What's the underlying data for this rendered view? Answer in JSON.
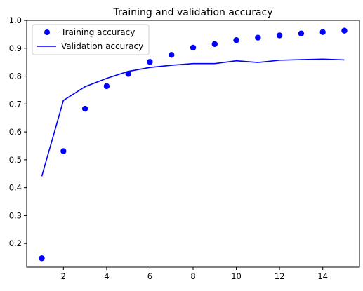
{
  "chart_data": {
    "type": "line",
    "title": "Training and validation accuracy",
    "xlabel": "",
    "ylabel": "",
    "xlim": [
      0.3,
      15.7
    ],
    "ylim": [
      0.115,
      1.0
    ],
    "grid": false,
    "legend_position": "top-left",
    "x_ticks": [
      2,
      4,
      6,
      8,
      10,
      12,
      14
    ],
    "y_ticks": [
      0.2,
      0.3,
      0.4,
      0.5,
      0.6,
      0.7,
      0.8,
      0.9,
      1.0
    ],
    "x_tick_labels": [
      "2",
      "4",
      "6",
      "8",
      "10",
      "12",
      "14"
    ],
    "y_tick_labels": [
      "0.2",
      "0.3",
      "0.4",
      "0.5",
      "0.6",
      "0.7",
      "0.8",
      "0.9",
      "1.0"
    ],
    "x": [
      1,
      2,
      3,
      4,
      5,
      6,
      7,
      8,
      9,
      10,
      11,
      12,
      13,
      14,
      15
    ],
    "series": [
      {
        "name": "Training accuracy",
        "style": "scatter",
        "color": "#0000ff",
        "values": [
          0.147,
          0.531,
          0.683,
          0.764,
          0.808,
          0.851,
          0.876,
          0.902,
          0.915,
          0.929,
          0.938,
          0.946,
          0.953,
          0.958,
          0.963
        ]
      },
      {
        "name": "Validation accuracy",
        "style": "line",
        "color": "#0000ff",
        "values": [
          0.441,
          0.713,
          0.762,
          0.792,
          0.817,
          0.831,
          0.839,
          0.845,
          0.845,
          0.855,
          0.849,
          0.857,
          0.859,
          0.861,
          0.858
        ]
      }
    ]
  }
}
